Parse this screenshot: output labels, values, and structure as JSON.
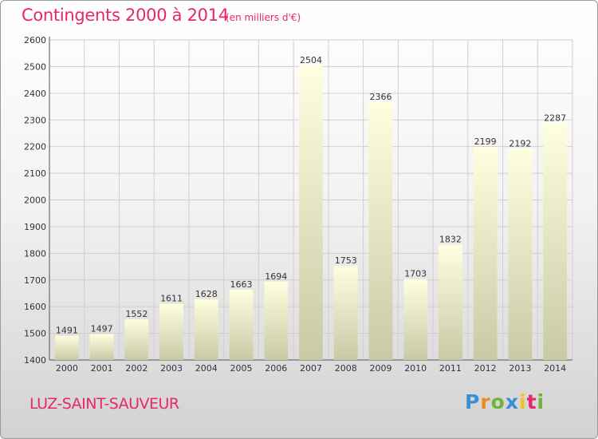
{
  "chart_data": {
    "type": "bar",
    "title": "Contingents 2000 à 2014",
    "subtitle": "(en milliers d'€)",
    "categories": [
      "2000",
      "2001",
      "2002",
      "2003",
      "2004",
      "2005",
      "2006",
      "2007",
      "2008",
      "2009",
      "2010",
      "2011",
      "2012",
      "2013",
      "2014"
    ],
    "values": [
      1491,
      1497,
      1552,
      1611,
      1628,
      1663,
      1694,
      2504,
      1753,
      2366,
      1703,
      1832,
      2199,
      2192,
      2287
    ],
    "ylim": [
      1400,
      2600
    ],
    "yticks": [
      1400,
      1500,
      1600,
      1700,
      1800,
      1900,
      2000,
      2100,
      2200,
      2300,
      2400,
      2500,
      2600
    ],
    "grid": true,
    "colors": {
      "bar_top": "#ffffdf",
      "bar_bottom": "#c9c9a6",
      "grid": "#cfcfcf",
      "text": "#e8266a"
    }
  },
  "footer": {
    "commune": "LUZ-SAINT-SAUVEUR",
    "logo": [
      "P",
      "r",
      "o",
      "x",
      "i",
      "t",
      "i"
    ]
  }
}
